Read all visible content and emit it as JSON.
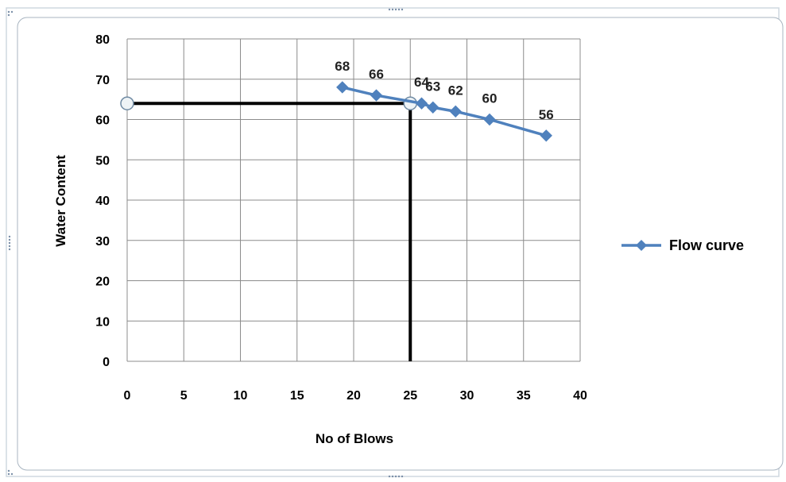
{
  "chart_data": {
    "type": "scatter",
    "title": "",
    "xlabel": "No of Blows",
    "ylabel": "Water Content",
    "xlim": [
      0,
      40
    ],
    "ylim": [
      0,
      80
    ],
    "xticks": [
      0,
      5,
      10,
      15,
      20,
      25,
      30,
      35,
      40
    ],
    "yticks": [
      0,
      10,
      20,
      30,
      40,
      50,
      60,
      70,
      80
    ],
    "grid": true,
    "legend_position": "right",
    "series": [
      {
        "name": "Flow curve",
        "color": "#4F81BD",
        "marker": "diamond",
        "x": [
          19,
          22,
          26,
          27,
          29,
          32,
          37
        ],
        "y": [
          68,
          66,
          64,
          63,
          62,
          60,
          56
        ],
        "labels": [
          "68",
          "66",
          "64",
          "63",
          "62",
          "60",
          "56"
        ]
      }
    ],
    "annotation": {
      "color": "#000000",
      "horizontal": {
        "from": [
          0,
          64
        ],
        "to": [
          25,
          64
        ]
      },
      "vertical": {
        "from": [
          25,
          0
        ],
        "to": [
          25,
          64
        ]
      }
    }
  }
}
